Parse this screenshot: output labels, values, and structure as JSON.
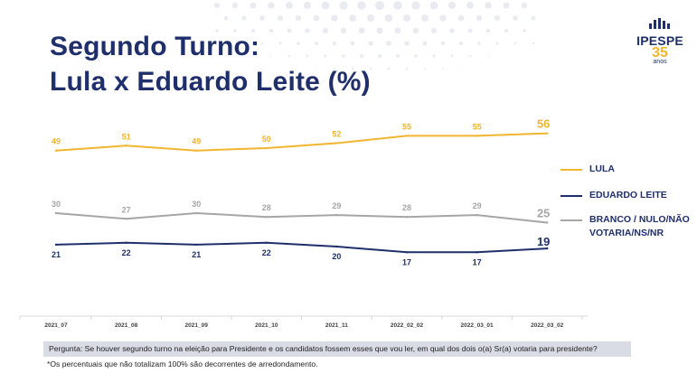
{
  "title_line1": "Segundo Turno:",
  "title_line2": "Lula x Eduardo Leite (%)",
  "logo": {
    "brand": "IPESPE",
    "years": "35",
    "subtitle": "anos",
    "icon": "bar-cluster-icon"
  },
  "colors": {
    "lula": "#f2b530",
    "leite": "#1f2f6b",
    "branco": "#a6a6a6",
    "title": "#1f2f6b"
  },
  "question": "Pergunta:  Se houver segundo turno na eleição para Presidente e os candidatos fossem esses que vou ler, em qual dos dois o(a) Sr(a) votaria para presidente?",
  "footnote": "*Os percentuais que não totalizam 100% são decorrentes de arredondamento.",
  "chart_data": {
    "type": "line",
    "categories": [
      "2021_07",
      "2021_08",
      "2021_09",
      "2021_10",
      "2021_11",
      "2022_02_02",
      "2022_03_01",
      "2022_03_02"
    ],
    "series": [
      {
        "name": "LULA",
        "values": [
          49,
          51,
          49,
          50,
          52,
          55,
          55,
          56
        ],
        "labels": [
          "49",
          "51",
          "49",
          "50",
          "52",
          "55",
          "55",
          "56"
        ]
      },
      {
        "name": "EDUARDO LEITE",
        "values": [
          21,
          22,
          21,
          22,
          20,
          17,
          17,
          19
        ],
        "labels": [
          "21",
          "22",
          "21",
          "22",
          "20",
          "17",
          "17",
          "19"
        ]
      },
      {
        "name": "BRANCO / NULO/NÃO VOTARIA/NS/NR",
        "values": [
          30,
          27,
          30,
          28,
          29,
          28,
          29,
          25
        ],
        "labels": [
          "30",
          "27",
          "30",
          "28",
          "29",
          "28",
          "29",
          "25"
        ]
      }
    ],
    "legend_position": "right",
    "grid": false
  }
}
